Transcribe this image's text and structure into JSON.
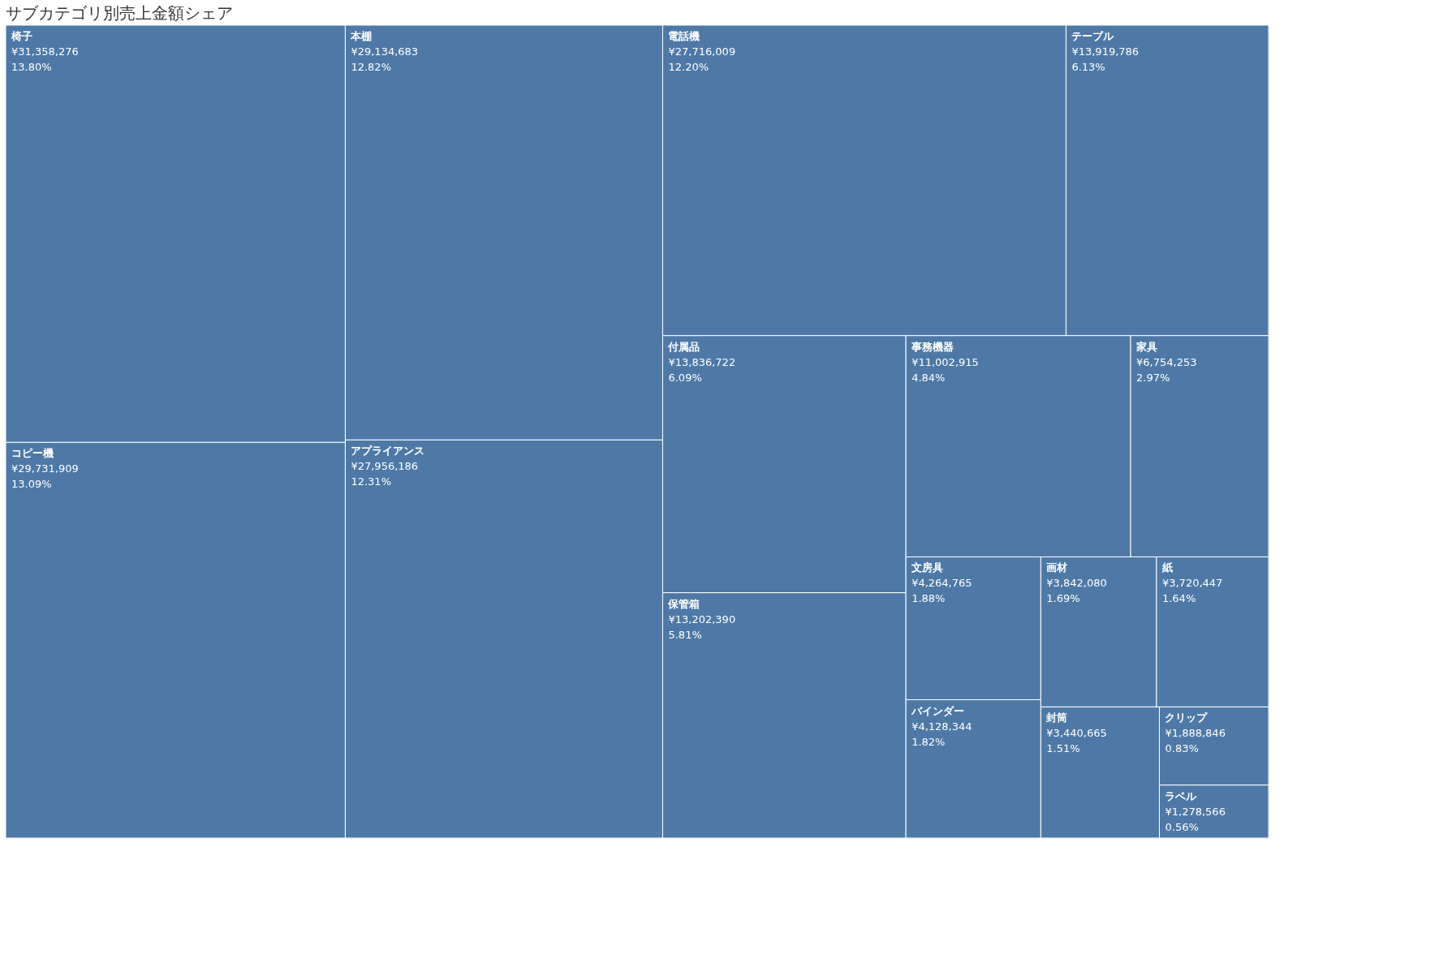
{
  "chart_data": {
    "type": "other",
    "title": "サブカテゴリ別売上金額シェア",
    "categories": [
      "椅子",
      "コピー機",
      "本棚",
      "アプライアンス",
      "電話機",
      "テーブル",
      "付属品",
      "保管箱",
      "事務機器",
      "家具",
      "文房具",
      "バインダー",
      "画材",
      "紙",
      "封筒",
      "クリップ",
      "ラベル"
    ],
    "values": [
      31358276,
      29731909,
      29134683,
      27956186,
      27716009,
      13919786,
      13836722,
      13202390,
      11002915,
      6754253,
      4264765,
      4128344,
      3842080,
      3720447,
      3440665,
      1888846,
      1278566
    ],
    "value_labels": [
      "¥31,358,276\n13.80%",
      "¥29,731,909\n13.09%",
      "¥29,134,683\n12.82%",
      "¥27,956,186\n12.31%",
      "¥27,716,009\n12.20%",
      "¥13,919,786\n6.13%",
      "¥13,836,722\n6.09%",
      "¥13,202,390\n5.81%",
      "¥11,002,915\n4.84%",
      "¥6,754,253\n2.97%",
      "¥4,264,765\n1.88%",
      "¥4,128,344\n1.82%",
      "¥3,842,080\n1.69%",
      "¥3,720,447\n1.64%",
      "¥3,440,665\n1.51%",
      "¥1,888,846\n0.83%",
      "¥1,278,566\n0.56%"
    ],
    "color": "#4e79a7"
  }
}
